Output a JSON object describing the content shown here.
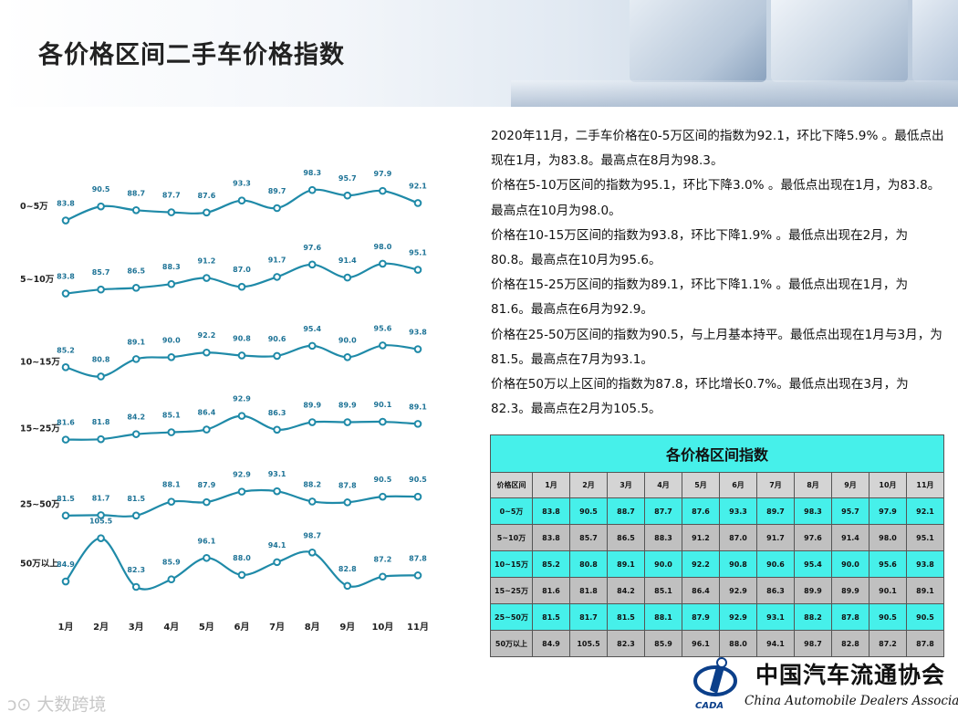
{
  "title": "各价格区间二手车价格指数",
  "colors": {
    "line": "#1f8aa8",
    "label": "#1e7396",
    "table_cyan": "#46f0ea",
    "table_gray": "#c0c0c0"
  },
  "chart_data": {
    "type": "line",
    "categories": [
      "1月",
      "2月",
      "3月",
      "4月",
      "5月",
      "6月",
      "7月",
      "8月",
      "9月",
      "10月",
      "11月"
    ],
    "series": [
      {
        "name": "0~5万",
        "values": [
          83.8,
          90.5,
          88.7,
          87.7,
          87.6,
          93.3,
          89.7,
          98.3,
          95.7,
          97.9,
          92.1
        ]
      },
      {
        "name": "5~10万",
        "values": [
          83.8,
          85.7,
          86.5,
          88.3,
          91.2,
          87.0,
          91.7,
          97.6,
          91.4,
          98.0,
          95.1
        ]
      },
      {
        "name": "10~15万",
        "values": [
          85.2,
          80.8,
          89.1,
          90.0,
          92.2,
          90.8,
          90.6,
          95.4,
          90.0,
          95.6,
          93.8
        ]
      },
      {
        "name": "15~25万",
        "values": [
          81.6,
          81.8,
          84.2,
          85.1,
          86.4,
          92.9,
          86.3,
          89.9,
          89.9,
          90.1,
          89.1
        ]
      },
      {
        "name": "25~50万",
        "values": [
          81.5,
          81.7,
          81.5,
          88.1,
          87.9,
          92.9,
          93.1,
          88.2,
          87.8,
          90.5,
          90.5
        ]
      },
      {
        "name": "50万以上",
        "values": [
          84.9,
          105.5,
          82.3,
          85.9,
          96.1,
          88.0,
          94.1,
          98.7,
          82.8,
          87.2,
          87.8
        ]
      }
    ],
    "label_format": "0.0"
  },
  "description": [
    "2020年11月，二手车价格在0-5万区间的指数为92.1，环比下降5.9% 。最低点出现在1月，为83.8。最高点在8月为98.3。",
    "价格在5-10万区间的指数为95.1，环比下降3.0% 。最低点出现在1月，为83.8。最高点在10月为98.0。",
    "价格在10-15万区间的指数为93.8，环比下降1.9% 。最低点出现在2月，为80.8。最高点在10月为95.6。",
    "价格在15-25万区间的指数为89.1，环比下降1.1% 。最低点出现在1月，为81.6。最高点在6月为92.9。",
    "价格在25-50万区间的指数为90.5，与上月基本持平。最低点出现在1月与3月，为81.5。最高点在7月为93.1。",
    "价格在50万以上区间的指数为87.8，环比增长0.7%。最低点出现在3月，为82.3。最高点在2月为105.5。"
  ],
  "table": {
    "caption": "各价格区间指数",
    "header": [
      "价格区间",
      "1月",
      "2月",
      "3月",
      "4月",
      "5月",
      "6月",
      "7月",
      "8月",
      "9月",
      "10月",
      "11月"
    ],
    "rows": [
      [
        "0~5万",
        "83.8",
        "90.5",
        "88.7",
        "87.7",
        "87.6",
        "93.3",
        "89.7",
        "98.3",
        "95.7",
        "97.9",
        "92.1"
      ],
      [
        "5~10万",
        "83.8",
        "85.7",
        "86.5",
        "88.3",
        "91.2",
        "87.0",
        "91.7",
        "97.6",
        "91.4",
        "98.0",
        "95.1"
      ],
      [
        "10~15万",
        "85.2",
        "80.8",
        "89.1",
        "90.0",
        "92.2",
        "90.8",
        "90.6",
        "95.4",
        "90.0",
        "95.6",
        "93.8"
      ],
      [
        "15~25万",
        "81.6",
        "81.8",
        "84.2",
        "85.1",
        "86.4",
        "92.9",
        "86.3",
        "89.9",
        "89.9",
        "90.1",
        "89.1"
      ],
      [
        "25~50万",
        "81.5",
        "81.7",
        "81.5",
        "88.1",
        "87.9",
        "92.9",
        "93.1",
        "88.2",
        "87.8",
        "90.5",
        "90.5"
      ],
      [
        "50万以上",
        "84.9",
        "105.5",
        "82.3",
        "85.9",
        "96.1",
        "88.0",
        "94.1",
        "98.7",
        "82.8",
        "87.2",
        "87.8"
      ]
    ]
  },
  "logo": {
    "name_cn": "中国汽车流通协会",
    "name_en": "China Automobile Dealers Association",
    "abbr": "CADA"
  },
  "watermark": "大数跨境"
}
